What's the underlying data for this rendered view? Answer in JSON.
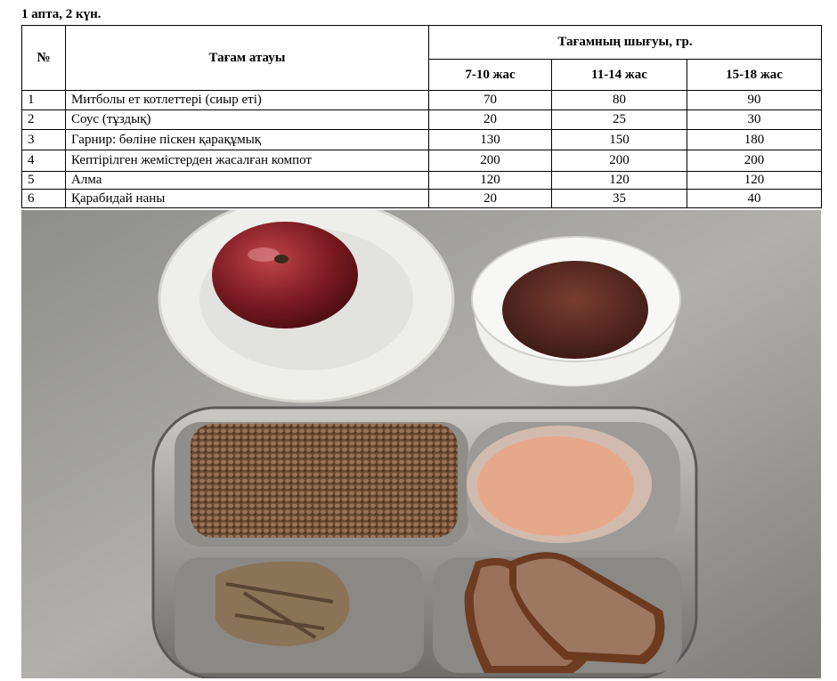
{
  "header": {
    "title": "1 апта, 2 күн."
  },
  "table": {
    "columns": {
      "number": "№",
      "name": "Тағам атауы",
      "output": "Тағамның шығуы, гр.",
      "ages": [
        "7-10 жас",
        "11-14 жас",
        "15-18 жас"
      ]
    },
    "rows": [
      [
        1,
        "Митболы ет котлеттері (сиыр еті)",
        70,
        80,
        90
      ],
      [
        2,
        "Соус (тұздық)",
        20,
        25,
        30
      ],
      [
        3,
        "Гарнир: бөліне піскен қарақұмық",
        130,
        150,
        180
      ],
      [
        4,
        "Кептірілген жемістерден жасалған компот",
        200,
        200,
        200
      ],
      [
        5,
        "Алма",
        120,
        120,
        120
      ],
      [
        6,
        "Қарабидай наны",
        20,
        35,
        40
      ]
    ]
  }
}
